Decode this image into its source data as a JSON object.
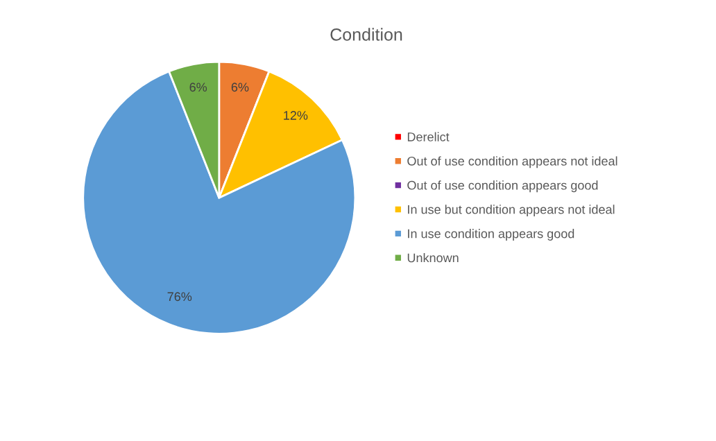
{
  "chart_data": {
    "type": "pie",
    "title": "Condition",
    "categories": [
      "Derelict",
      "Out of use condition appears not ideal",
      "Out of use condition appears good",
      "In use but condition appears not ideal",
      "In use condition appears good",
      "Unknown"
    ],
    "values": [
      0,
      6,
      0,
      12,
      76,
      6
    ],
    "colors": [
      "#ff0000",
      "#ed7d31",
      "#7030a0",
      "#ffc000",
      "#5b9bd5",
      "#70ad47"
    ],
    "value_labels": [
      null,
      "6%",
      null,
      "12%",
      "76%",
      "6%"
    ],
    "legend": "right"
  }
}
